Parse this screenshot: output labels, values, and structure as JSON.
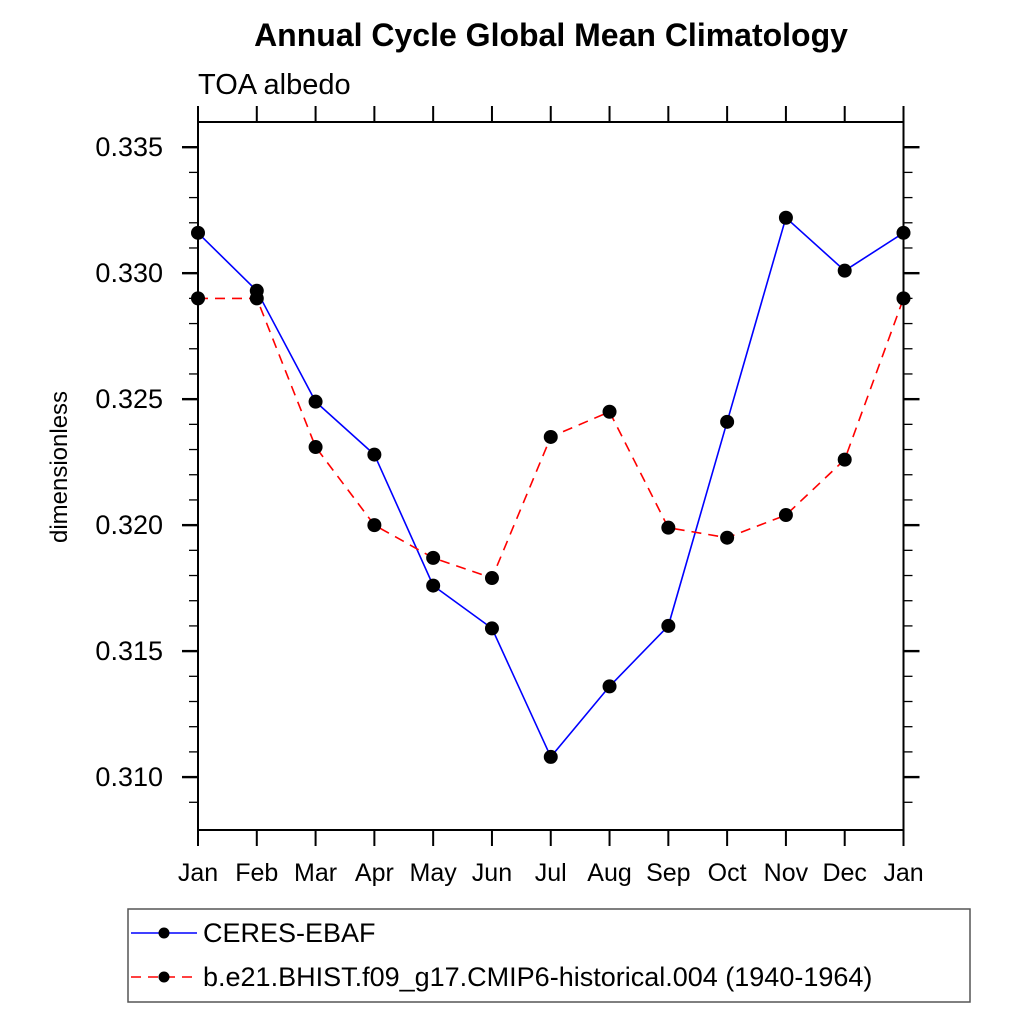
{
  "chart_data": {
    "type": "line",
    "title": "Annual Cycle Global Mean Climatology",
    "subtitle": "TOA albedo",
    "ylabel": "dimensionless",
    "xlabel": "",
    "x_tick_labels": [
      "Jan",
      "Feb",
      "Mar",
      "Apr",
      "May",
      "Jun",
      "Jul",
      "Aug",
      "Sep",
      "Oct",
      "Nov",
      "Dec",
      "Jan"
    ],
    "y_major_ticks": [
      0.31,
      0.315,
      0.32,
      0.325,
      0.33,
      0.335
    ],
    "y_tick_labels": [
      "0.310",
      "0.315",
      "0.320",
      "0.325",
      "0.330",
      "0.335"
    ],
    "y_minor_step": 0.001,
    "ylim": [
      0.3079,
      0.336
    ],
    "grid": false,
    "legend_position": "bottom-left-box",
    "colors": {
      "axis": "#000000",
      "background": "#ffffff",
      "marker": "#000000",
      "series1": "#0000ff",
      "series2": "#ff0000"
    },
    "series": [
      {
        "name": "CERES-EBAF",
        "color": "#0000ff",
        "line_style": "solid",
        "marker": "filled-circle",
        "values": [
          0.3316,
          0.3293,
          0.3249,
          0.3228,
          0.3176,
          0.3159,
          0.3108,
          0.3136,
          0.316,
          0.3241,
          0.3322,
          0.3301,
          0.3316
        ]
      },
      {
        "name": "b.e21.BHIST.f09_g17.CMIP6-historical.004 (1940-1964)",
        "color": "#ff0000",
        "line_style": "dashed",
        "marker": "filled-circle",
        "values": [
          0.329,
          0.329,
          0.3231,
          0.32,
          0.3187,
          0.3179,
          0.3235,
          0.3245,
          0.3199,
          0.3195,
          0.3204,
          0.3226,
          0.329
        ]
      }
    ]
  }
}
